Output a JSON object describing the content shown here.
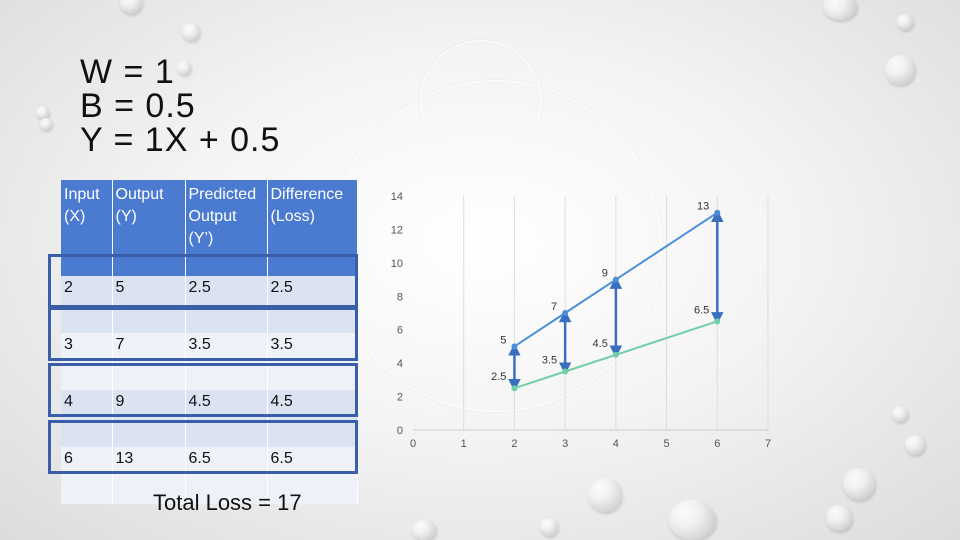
{
  "title_lines": [
    "W = 1",
    "B = 0.5",
    "Y = 1X + 0.5"
  ],
  "table": {
    "headers": [
      "Input (X)",
      "Output (Y)",
      "Predicted Output (Y’)",
      "Difference (Loss)"
    ],
    "rows": [
      [
        "2",
        "5",
        "2.5",
        "2.5"
      ],
      [
        "3",
        "7",
        "3.5",
        "3.5"
      ],
      [
        "4",
        "9",
        "4.5",
        "4.5"
      ],
      [
        "6",
        "13",
        "6.5",
        "6.5"
      ]
    ]
  },
  "total_loss_text": "Total Loss = 17",
  "colors": {
    "actual_line": "#4a90d9",
    "predicted_line": "#6fcfa6",
    "arrow": "#3a6fc0",
    "header_bg": "#4a7bd0",
    "box_border": "#3a5fa8"
  },
  "chart_data": {
    "type": "line",
    "x_ticks": [
      "0",
      "1",
      "2",
      "3",
      "4",
      "5",
      "6",
      "7"
    ],
    "y_ticks": [
      "0",
      "2",
      "4",
      "6",
      "8",
      "10",
      "12",
      "14"
    ],
    "xlim": [
      0,
      7
    ],
    "ylim": [
      0,
      14
    ],
    "grid": "vertical",
    "series": [
      {
        "points": [
          [
            2,
            5
          ],
          [
            3,
            7
          ],
          [
            4,
            9
          ],
          [
            6,
            13
          ]
        ],
        "labels": [
          "5",
          "7",
          "9",
          "13"
        ]
      },
      {
        "points": [
          [
            2,
            2.5
          ],
          [
            3,
            3.5
          ],
          [
            4,
            4.5
          ],
          [
            6,
            6.5
          ]
        ],
        "labels": [
          "2.5",
          "3.5",
          "4.5",
          "6.5"
        ]
      }
    ]
  }
}
